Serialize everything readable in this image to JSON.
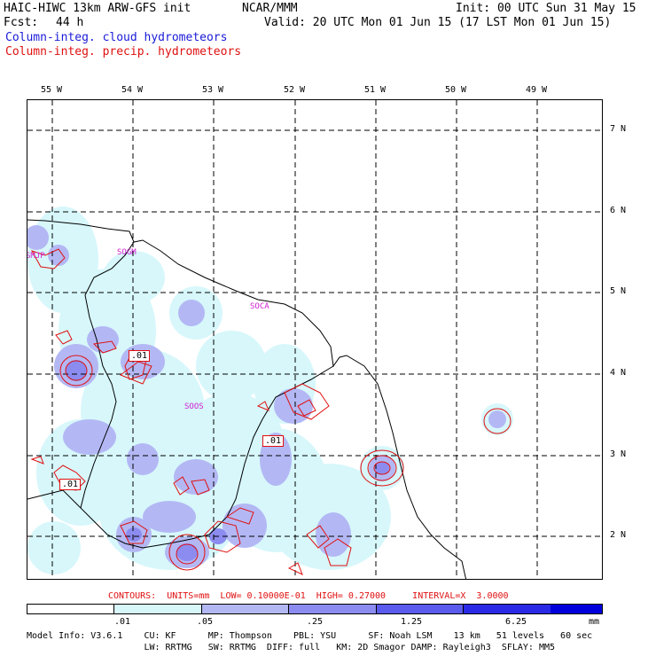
{
  "header": {
    "title_left": "HAIC-HIWC 13km ARW-GFS init",
    "title_center": "NCAR/MMM",
    "init": "Init: 00 UTC Sun 31 May 15",
    "fcst_label": "Fcst:",
    "fcst_value": "44 h",
    "valid": "Valid: 20 UTC Mon 01 Jun 15 (17 LST Mon 01 Jun 15)",
    "field_cloud": "Column-integ. cloud hydrometeors",
    "field_precip": "Column-integ. precip. hydrometeors"
  },
  "map": {
    "longitudes": [
      "55 W",
      "54 W",
      "53 W",
      "52 W",
      "51 W",
      "50 W",
      "49 W"
    ],
    "latitudes": [
      "7 N",
      "6 N",
      "5 N",
      "4 N",
      "3 N",
      "2 N"
    ],
    "sites": [
      "SMJP",
      "SOGM",
      "SOCA",
      "SOOS"
    ],
    "contour_labels": [
      ".01",
      ".01",
      ".01"
    ]
  },
  "legend": {
    "contours": "CONTOURS:  UNITS=mm  LOW= 0.10000E-01  HIGH= 0.27000     INTERVAL=X  3.0000",
    "levels": [
      ".01",
      ".05",
      ".25",
      "1.25",
      "6.25"
    ],
    "units": "mm",
    "colors": [
      "#ffffff",
      "#d7f7fb",
      "#b3b8f4",
      "#8c8cf0",
      "#5a5aec",
      "#2a2ae6",
      "#0000dd"
    ]
  },
  "model_info": {
    "line1": "Model Info: V3.6.1    CU: KF      MP: Thompson    PBL: YSU      SF: Noah LSM    13 km   51 levels   60 sec",
    "line2": "                      LW: RRTMG   SW: RRTMG  DIFF: full   KM: 2D Smagor DAMP: Rayleigh3  SFLAY: MM5"
  }
}
